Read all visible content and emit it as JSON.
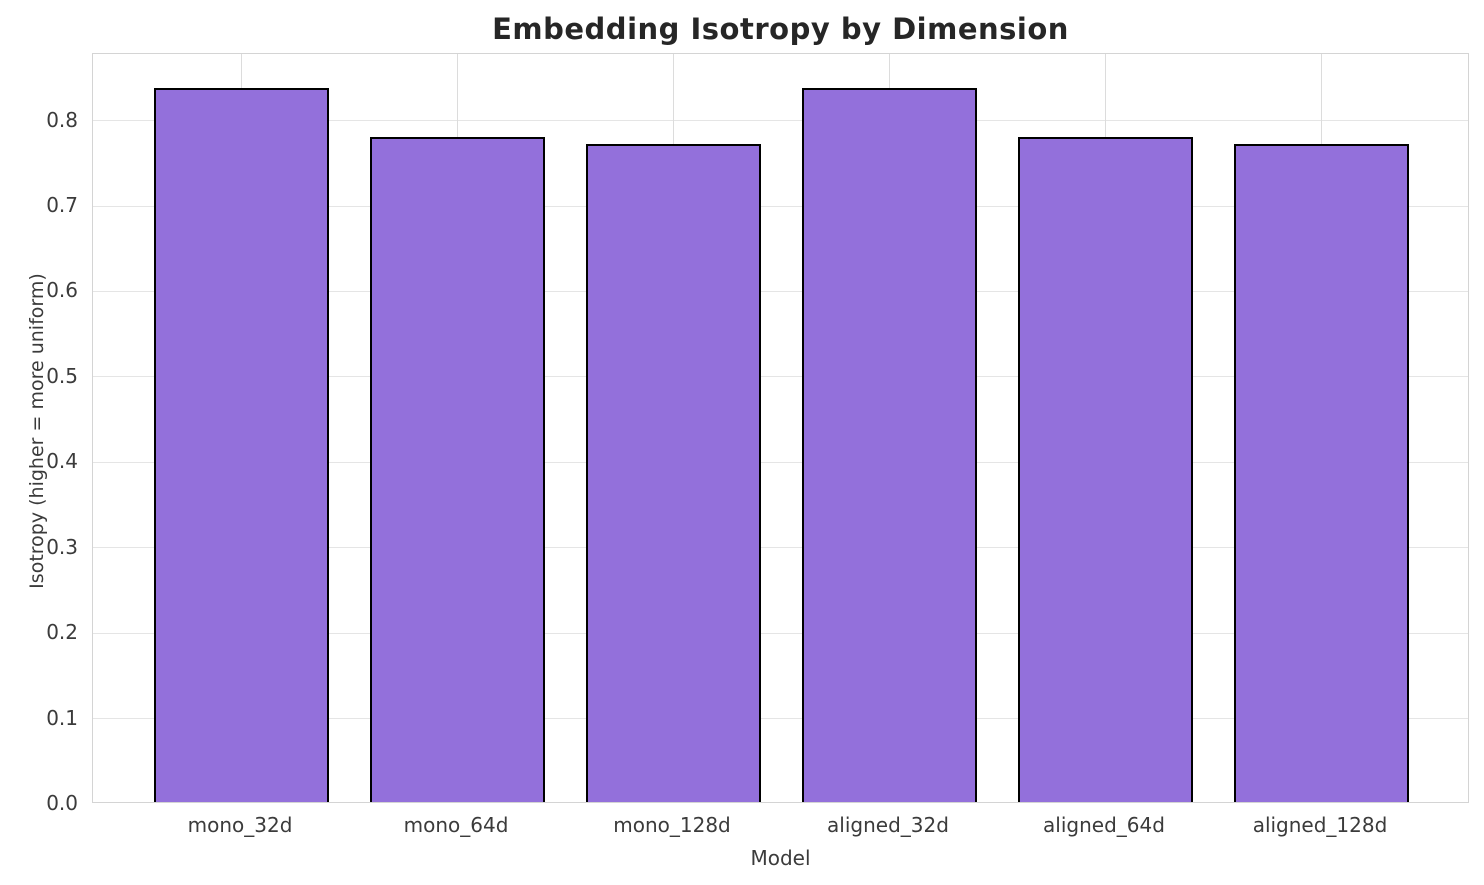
{
  "chart_data": {
    "type": "bar",
    "title": "Embedding Isotropy by Dimension",
    "xlabel": "Model",
    "ylabel": "Isotropy (higher = more uniform)",
    "categories": [
      "mono_32d",
      "mono_64d",
      "mono_128d",
      "aligned_32d",
      "aligned_64d",
      "aligned_128d"
    ],
    "values": [
      0.836,
      0.778,
      0.77,
      0.836,
      0.778,
      0.77
    ],
    "ylim": [
      0,
      0.878
    ],
    "yticks": [
      0.0,
      0.1,
      0.2,
      0.3,
      0.4,
      0.5,
      0.6,
      0.7,
      0.8
    ],
    "grid": true,
    "legend": "none",
    "bar_color": "#9370DB",
    "bar_edge_color": "#000000"
  }
}
